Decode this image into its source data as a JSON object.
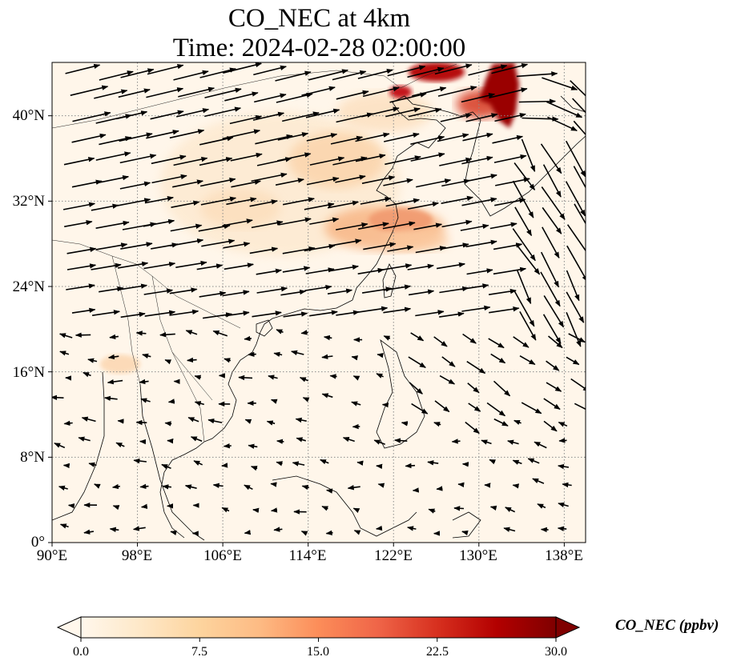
{
  "title_line1": "CO_NEC at 4km",
  "title_line2": "Time: 2024-02-28 02:00:00",
  "map": {
    "extent_lon": [
      90,
      140
    ],
    "extent_lat": [
      0,
      45
    ],
    "lat_ticks": [
      {
        "value": 40,
        "label": "40°N"
      },
      {
        "value": 32,
        "label": "32°N"
      },
      {
        "value": 24,
        "label": "24°N"
      },
      {
        "value": 16,
        "label": "16°N"
      },
      {
        "value": 8,
        "label": "8°N"
      },
      {
        "value": 0,
        "label": "0°"
      }
    ],
    "lon_ticks": [
      {
        "value": 90,
        "label": "90°E"
      },
      {
        "value": 98,
        "label": "98°E"
      },
      {
        "value": 106,
        "label": "106°E"
      },
      {
        "value": 114,
        "label": "114°E"
      },
      {
        "value": 122,
        "label": "122°E"
      },
      {
        "value": 130,
        "label": "130°E"
      },
      {
        "value": 138,
        "label": "138°E"
      }
    ],
    "gridlines": "dotted",
    "field": "CO_NEC",
    "high_areas": [
      "Korea / NE China border",
      "East China Sea coast near Shanghai",
      "North China Plain"
    ],
    "vectors": "wind arrows"
  },
  "colorbar": {
    "label": "CO_NEC (ppbv)",
    "min": 0.0,
    "max": 30.0,
    "colormap": "OrRd",
    "extend": "both",
    "ticks": [
      "0.0",
      "7.5",
      "15.0",
      "22.5",
      "30.0"
    ],
    "colors": [
      "#fff7ec",
      "#fee8c8",
      "#fdd49e",
      "#fdbb84",
      "#fc8d59",
      "#ef6548",
      "#d7301f",
      "#b30000",
      "#7f0000"
    ]
  }
}
